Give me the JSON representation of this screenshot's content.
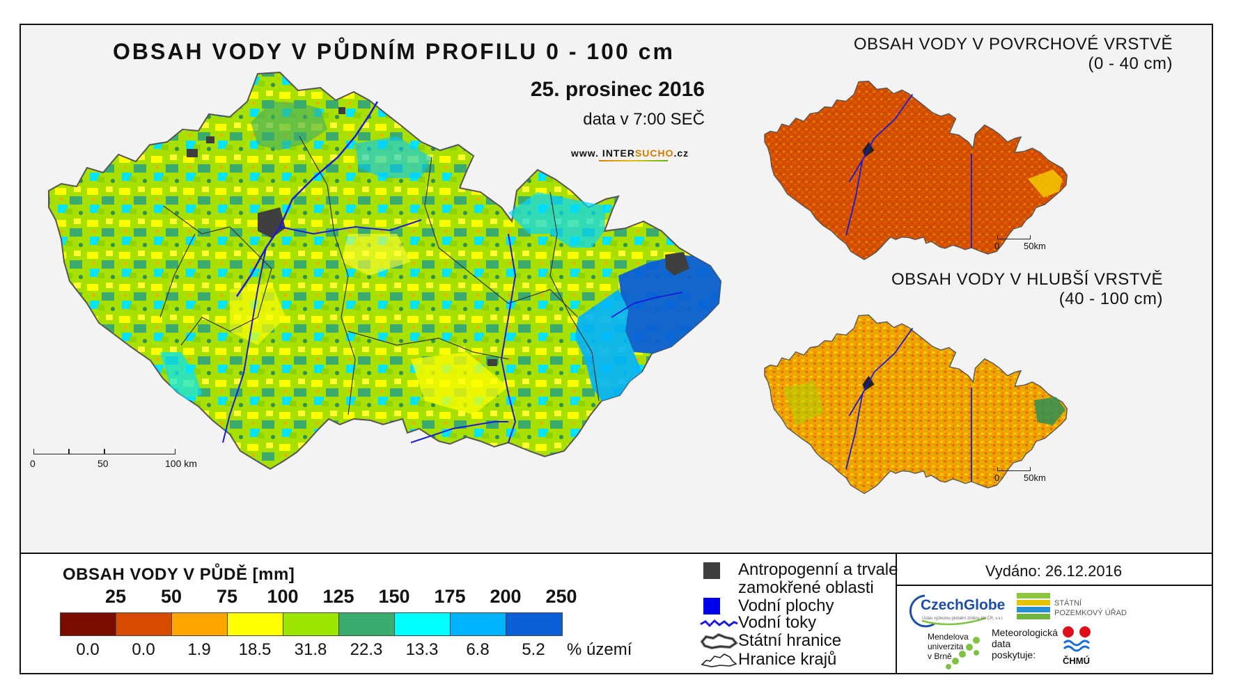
{
  "map": {
    "title": "OBSAH VODY V PŮDNÍM PROFILU 0 - 100 cm",
    "date": "25. prosinec 2016",
    "data_time": "data v 7:00 SEČ",
    "website_prefix": "www. INTER",
    "website_highlight": "SUCHO",
    "website_suffix": ".cz",
    "scale": {
      "zero": "0",
      "mid": "50",
      "end": "100 km"
    }
  },
  "inset_top": {
    "title": "OBSAH VODY V POVRCHOVÉ VRSTVĚ",
    "range": "(0 - 40 cm)",
    "scale": {
      "zero": "0",
      "end": "50km"
    }
  },
  "inset_bottom": {
    "title": "OBSAH VODY V HLUBŠÍ VRSTVĚ",
    "range": "(40 - 100 cm)",
    "scale": {
      "zero": "0",
      "end": "50km"
    }
  },
  "legend": {
    "title": "OBSAH VODY V PŮDĚ [mm]",
    "thresholds": [
      "25",
      "50",
      "75",
      "100",
      "125",
      "150",
      "175",
      "200",
      "250"
    ],
    "classes": [
      {
        "color": "#7a0c00",
        "percent": "0.0"
      },
      {
        "color": "#d74b00",
        "percent": "0.0"
      },
      {
        "color": "#ffa500",
        "percent": "1.9"
      },
      {
        "color": "#ffff00",
        "percent": "18.5"
      },
      {
        "color": "#9ee600",
        "percent": "31.8"
      },
      {
        "color": "#3cac6e",
        "percent": "22.3"
      },
      {
        "color": "#00ffff",
        "percent": "13.3"
      },
      {
        "color": "#00b4ff",
        "percent": "6.8"
      },
      {
        "color": "#0a5fd7",
        "percent": "5.2"
      }
    ],
    "percent_unit": "% území"
  },
  "key": {
    "anthropogenic_line1": "Antropogenní a trvale",
    "anthropogenic_line2": "zamokřené oblasti",
    "water_bodies": "Vodní plochy",
    "rivers": "Vodní toky",
    "state_border": "Státní hranice",
    "region_border": "Hranice krajů"
  },
  "issued": "Vydáno: 26.12.2016",
  "logos": {
    "czechglobe": "CzechGlobe",
    "czechglobe_sub": "Ústav výzkumu globální změny AV ČR, v.v.i.",
    "spu_line1": "STÁTNÍ",
    "spu_line2": "POZEMKOVÝ ÚŘAD",
    "mendel_line1": "Mendelova",
    "mendel_line2": "univerzita",
    "mendel_line3": "v Brně",
    "meteo_line1": "Meteorologická",
    "meteo_line2": "data",
    "meteo_line3": "poskytuje:",
    "chmu": "ČHMÚ"
  },
  "colors": {
    "anthropogenic": "#3f3f3f",
    "water": "#0000ee",
    "river": "#1a1ad8"
  }
}
